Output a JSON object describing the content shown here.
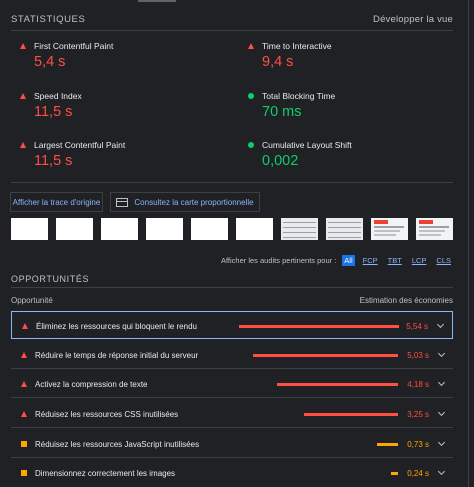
{
  "header": {
    "title": "STATISTIQUES",
    "expand_link": "Développer la vue"
  },
  "metrics": [
    {
      "label": "First Contentful Paint",
      "value": "5,4 s",
      "status": "fail",
      "color": "#ff4e42"
    },
    {
      "label": "Time to Interactive",
      "value": "9,4 s",
      "status": "fail",
      "color": "#ff4e42"
    },
    {
      "label": "Speed Index",
      "value": "11,5 s",
      "status": "fail",
      "color": "#ff4e42"
    },
    {
      "label": "Total Blocking Time",
      "value": "70 ms",
      "status": "pass",
      "color": "#0cce6b"
    },
    {
      "label": "Largest Contentful Paint",
      "value": "11,5 s",
      "status": "fail",
      "color": "#ff4e42"
    },
    {
      "label": "Cumulative Layout Shift",
      "value": "0,002",
      "status": "pass",
      "color": "#0cce6b"
    }
  ],
  "buttons": {
    "trace": "Afficher la trace d'origine",
    "treemap": "Consultez la carte proportionnelle",
    "treemap_icon": "treemap-icon"
  },
  "filter": {
    "label": "Afficher les audits pertinents pour :",
    "options": [
      "All",
      "FCP",
      "TBT",
      "LCP",
      "CLS"
    ],
    "selected": "All"
  },
  "opportunities": {
    "title": "OPPORTUNITÉS",
    "col_left": "Opportunité",
    "col_right": "Estimation des économies",
    "items": [
      {
        "label": "Éliminez les ressources qui bloquent le rendu",
        "savings": "5,54 s",
        "savings_value": 5.54,
        "severity": "fail"
      },
      {
        "label": "Réduire le temps de réponse initial du serveur",
        "savings": "5,03 s",
        "savings_value": 5.03,
        "severity": "fail"
      },
      {
        "label": "Activez la compression de texte",
        "savings": "4,18 s",
        "savings_value": 4.18,
        "severity": "fail"
      },
      {
        "label": "Réduisez les ressources CSS inutilisées",
        "savings": "3,25 s",
        "savings_value": 3.25,
        "severity": "fail"
      },
      {
        "label": "Réduisez les ressources JavaScript inutilisées",
        "savings": "0,73 s",
        "savings_value": 0.73,
        "severity": "average"
      },
      {
        "label": "Dimensionnez correctement les images",
        "savings": "0,24 s",
        "savings_value": 0.24,
        "severity": "average"
      }
    ]
  },
  "colors": {
    "fail": "#ff4e42",
    "pass": "#0cce6b",
    "average": "#ffa400",
    "link": "#8ab4f8"
  }
}
